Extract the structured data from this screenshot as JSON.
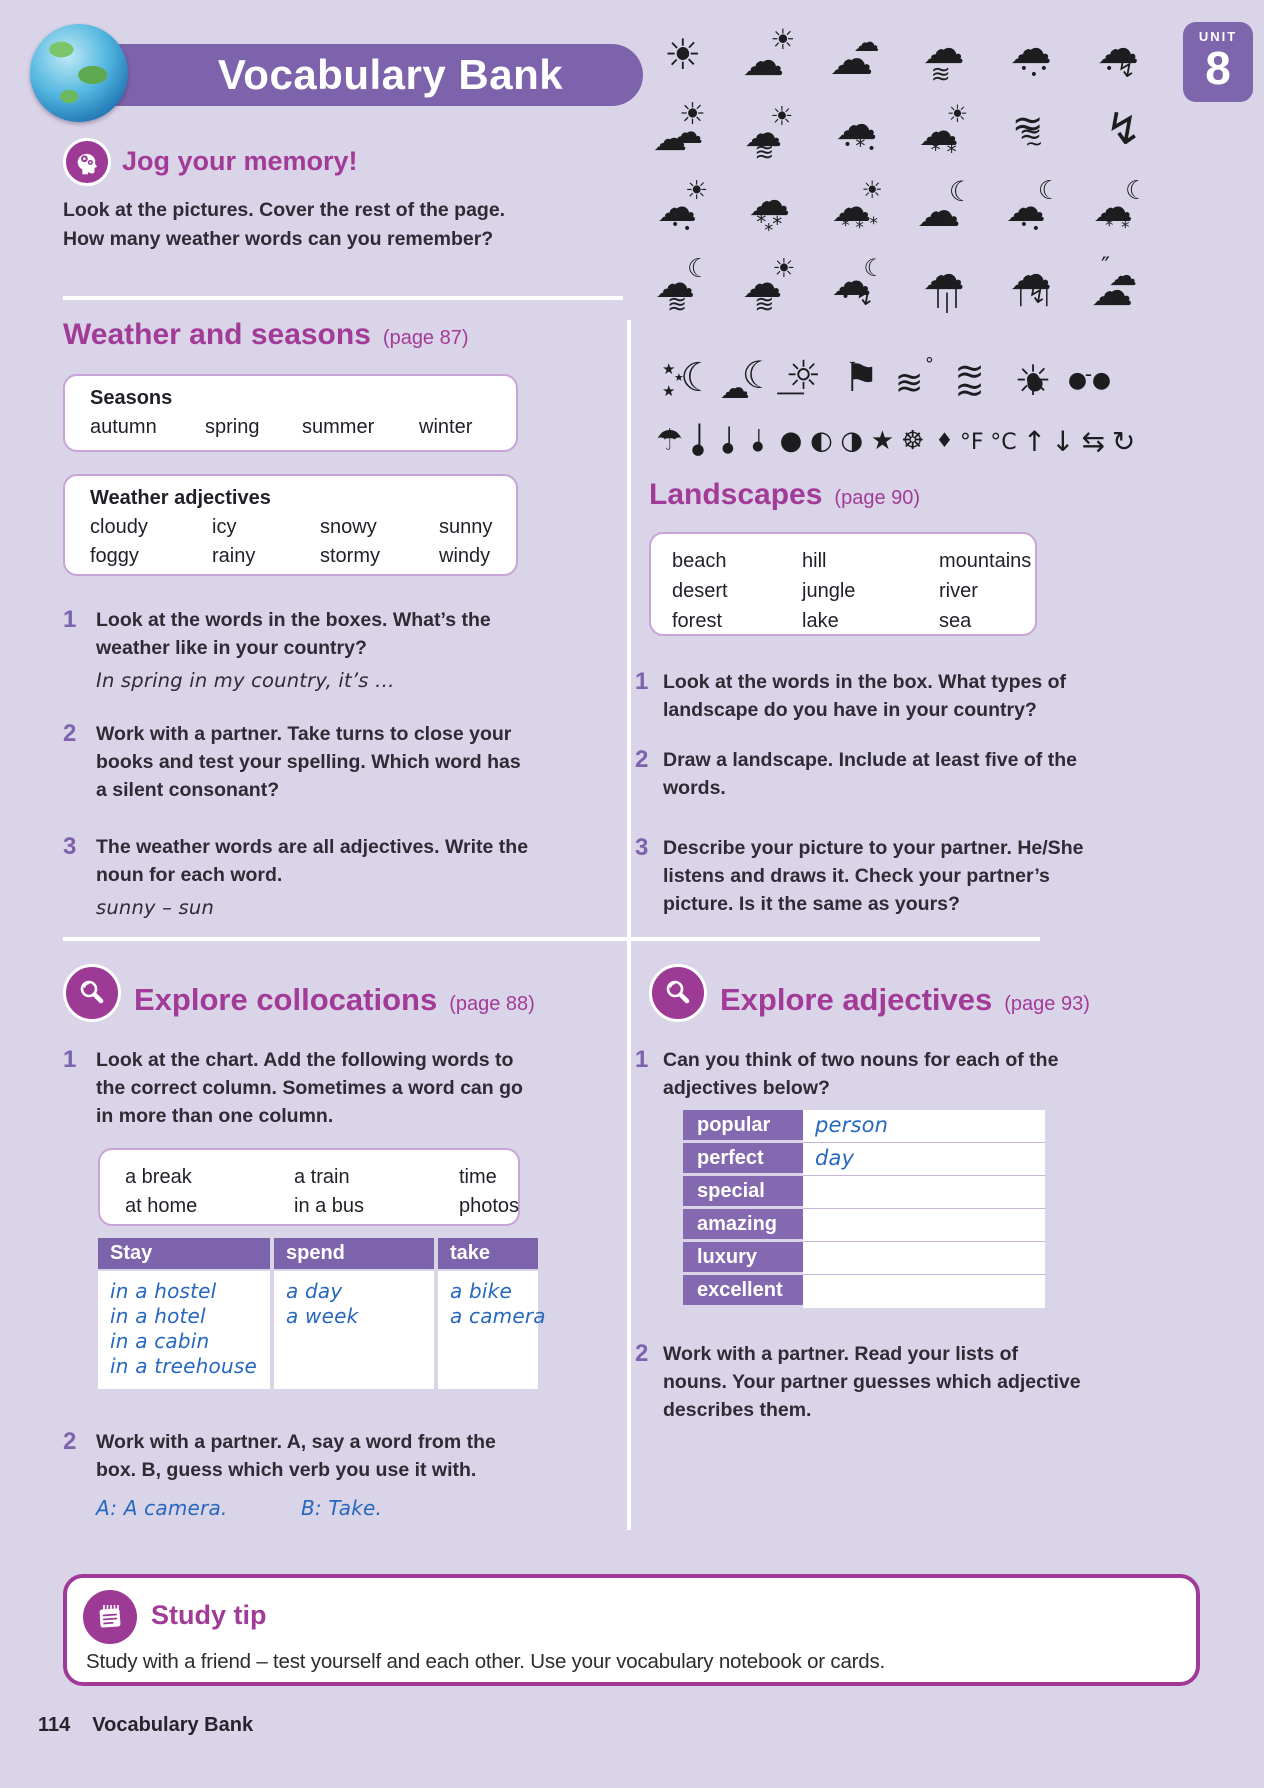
{
  "header": {
    "title": "Vocabulary Bank",
    "unit_label": "UNIT",
    "unit_number": "8"
  },
  "jog": {
    "title": "Jog your memory!",
    "intro_lines": [
      "Look at the pictures. Cover the rest of the page.",
      "How many weather words can you remember?"
    ]
  },
  "weather_seasons": {
    "title": "Weather and seasons",
    "page_ref": "(page 87)",
    "seasons_box": {
      "title": "Seasons",
      "words": [
        "autumn",
        "spring",
        "summer",
        "winter"
      ]
    },
    "adjectives_box": {
      "title": "Weather adjectives",
      "words": [
        "cloudy",
        "icy",
        "snowy",
        "sunny",
        "foggy",
        "rainy",
        "stormy",
        "windy"
      ]
    },
    "exercises": [
      {
        "num": "1",
        "lines": [
          "Look at the words in the boxes. What’s the",
          "weather like in your country?"
        ],
        "example": "In spring in my country, it’s …"
      },
      {
        "num": "2",
        "lines": [
          "Work with a partner. Take turns to close your",
          "books and test your spelling. Which word has",
          "a silent consonant?"
        ]
      },
      {
        "num": "3",
        "lines": [
          "The weather words are all adjectives. Write the",
          "noun for each word."
        ],
        "example": "sunny – sun"
      }
    ]
  },
  "landscapes": {
    "title": "Landscapes",
    "page_ref": "(page 90)",
    "box_words": [
      [
        "beach",
        "hill",
        "mountains"
      ],
      [
        "desert",
        "jungle",
        "river"
      ],
      [
        "forest",
        "lake",
        "sea"
      ]
    ],
    "exercises": [
      {
        "num": "1",
        "lines": [
          "Look at the words in the box. What types of",
          "landscape do you have in your country?"
        ]
      },
      {
        "num": "2",
        "lines": [
          "Draw a landscape. Include at least five of the",
          "words."
        ]
      },
      {
        "num": "3",
        "lines": [
          "Describe your picture to your partner. He/She",
          "listens and draws it. Check your partner’s",
          "picture. Is it the same as yours?"
        ]
      }
    ]
  },
  "collocations": {
    "title": "Explore collocations",
    "page_ref": "(page 88)",
    "exercise1": {
      "num": "1",
      "lines": [
        "Look at the chart. Add the following words to",
        "the correct column. Sometimes a word can go",
        "in more than one column."
      ]
    },
    "word_box": [
      [
        "a break",
        "a train",
        "time"
      ],
      [
        "at home",
        "in a bus",
        "photos"
      ]
    ],
    "table": {
      "headers": [
        "Stay",
        "spend",
        "take"
      ],
      "columns": [
        [
          "in a hostel",
          "in a hotel",
          "in a cabin",
          "in a treehouse"
        ],
        [
          "a day",
          "a week"
        ],
        [
          "a bike",
          "a camera"
        ]
      ]
    },
    "exercise2": {
      "num": "2",
      "lines": [
        "Work with a partner. A, say a word from the",
        "box. B, guess which verb you use it with."
      ],
      "example_a": "A: A camera.",
      "example_b": "B: Take."
    }
  },
  "adjectives": {
    "title": "Explore adjectives",
    "page_ref": "(page 93)",
    "exercise1": {
      "num": "1",
      "lines": [
        "Can you think of two nouns for each of the",
        "adjectives below?"
      ]
    },
    "rows": [
      {
        "label": "popular",
        "answer": "person"
      },
      {
        "label": "perfect",
        "answer": "day"
      },
      {
        "label": "special",
        "answer": ""
      },
      {
        "label": "amazing",
        "answer": ""
      },
      {
        "label": "luxury",
        "answer": ""
      },
      {
        "label": "excellent",
        "answer": ""
      }
    ],
    "exercise2": {
      "num": "2",
      "lines": [
        "Work with a partner. Read your lists of",
        "nouns. Your partner guesses which adjective",
        "describes them."
      ]
    }
  },
  "study_tip": {
    "title": "Study tip",
    "text": "Study with a friend – test yourself and each other. Use your vocabulary notebook or cards."
  },
  "footer": {
    "page_number": "114",
    "label": "Vocabulary Bank"
  },
  "colors": {
    "page_bg": "#DAD4E8",
    "banner_purple": "#7D63AB",
    "heading_magenta": "#A23B98",
    "icon_circle_purple": "#9C3A95",
    "box_border": "#C9A3D8",
    "text_dark": "#2E2B35",
    "handwriting_blue": "#2667BF",
    "study_tip_border": "#A13A97"
  },
  "icons": {
    "grid_rows": [
      [
        "sun",
        "sun-behind-cloud",
        "two-clouds",
        "windy-cloud",
        "rain-cloud",
        "storm-rain-cloud"
      ],
      [
        "partly-sunny-cloud",
        "windy-sun-cloud",
        "sleet-cloud",
        "snow-sun-cloud",
        "tornado",
        "lightning-bolt"
      ],
      [
        "sun-shower-cloud",
        "snow-cloud",
        "snow-shower-sun-cloud",
        "cloud-moon",
        "rain-moon-cloud",
        "snow-moon-cloud"
      ],
      [
        "windy-moon-cloud",
        "windy-sun-cloud-2",
        "storm-moon-cloud",
        "heavy-rain-cloud",
        "rain-lightning-cloud",
        "wind-over-clouds"
      ]
    ],
    "row5": [
      "moon-and-stars",
      "cloud-crescent-moon",
      "sunrise",
      "flag",
      "wind-leaves",
      "waves",
      "bright-sun",
      "sunglasses"
    ],
    "row6": [
      "umbrella",
      "thermometer-high",
      "thermometer-mid",
      "thermometer-low",
      "full-moon",
      "half-moon",
      "gibbous-moon",
      "star",
      "snowflake",
      "raindrop",
      "fahrenheit",
      "celsius",
      "arrow-up",
      "arrow-down",
      "swap-arrows",
      "rotate-arrow"
    ],
    "compositions": {
      "sun": [
        [
          "☀",
          9,
          4,
          42
        ]
      ],
      "sun-behind-cloud": [
        [
          "☀",
          28,
          -4,
          28
        ],
        [
          "☁",
          0,
          10,
          42
        ]
      ],
      "two-clouds": [
        [
          "☁",
          24,
          0,
          26
        ],
        [
          "☁",
          0,
          8,
          44
        ]
      ],
      "windy-cloud": [
        [
          "☁",
          6,
          -2,
          42
        ],
        [
          "≋",
          14,
          32,
          24
        ]
      ],
      "rain-cloud": [
        [
          "☁",
          6,
          -2,
          42
        ],
        [
          "•",
          16,
          32,
          14
        ],
        [
          "•",
          26,
          38,
          14
        ],
        [
          "•",
          36,
          32,
          14
        ]
      ],
      "storm-rain-cloud": [
        [
          "☁",
          6,
          -2,
          42
        ],
        [
          "•",
          14,
          32,
          14
        ],
        [
          "↯",
          26,
          30,
          22
        ]
      ],
      "partly-sunny-cloud": [
        [
          "☀",
          24,
          -6,
          30
        ],
        [
          "☁",
          16,
          10,
          32
        ],
        [
          "☁",
          -2,
          16,
          34
        ]
      ],
      "windy-sun-cloud": [
        [
          "☀",
          28,
          -2,
          26
        ],
        [
          "☁",
          2,
          8,
          38
        ],
        [
          "≋",
          12,
          34,
          24
        ]
      ],
      "sleet-cloud": [
        [
          "☁",
          6,
          -2,
          42
        ],
        [
          "•",
          14,
          32,
          14
        ],
        [
          "*",
          26,
          30,
          20
        ],
        [
          "•",
          38,
          36,
          14
        ]
      ],
      "snow-sun-cloud": [
        [
          "☀",
          30,
          -4,
          24
        ],
        [
          "☁",
          2,
          6,
          40
        ],
        [
          "*",
          14,
          34,
          20
        ],
        [
          "*",
          30,
          36,
          20
        ]
      ],
      "tornado": [
        [
          "≈",
          8,
          -2,
          38
        ],
        [
          "≈",
          15,
          14,
          28
        ],
        [
          "~",
          21,
          28,
          22
        ]
      ],
      "lightning-bolt": [
        [
          "↯",
          14,
          2,
          44
        ]
      ],
      "sun-shower-cloud": [
        [
          "☀",
          30,
          -4,
          26
        ],
        [
          "☁",
          2,
          6,
          40
        ],
        [
          "•",
          16,
          36,
          14
        ],
        [
          "•",
          28,
          40,
          14
        ]
      ],
      "snow-cloud": [
        [
          "☁",
          6,
          -2,
          42
        ],
        [
          "*",
          14,
          30,
          20
        ],
        [
          "*",
          30,
          32,
          20
        ],
        [
          "*",
          22,
          40,
          18
        ]
      ],
      "snow-shower-sun-cloud": [
        [
          "☀",
          32,
          -4,
          24
        ],
        [
          "☁",
          2,
          6,
          40
        ],
        [
          "*",
          12,
          36,
          17
        ],
        [
          "*",
          26,
          38,
          17
        ],
        [
          "*",
          40,
          34,
          17
        ]
      ],
      "cloud-moon": [
        [
          "☾",
          32,
          -4,
          28
        ],
        [
          "☁",
          0,
          8,
          44
        ]
      ],
      "rain-moon-cloud": [
        [
          "☾",
          34,
          -4,
          26
        ],
        [
          "☁",
          2,
          6,
          40
        ],
        [
          "•",
          16,
          36,
          14
        ],
        [
          "•",
          28,
          40,
          14
        ]
      ],
      "snow-moon-cloud": [
        [
          "☾",
          34,
          -4,
          26
        ],
        [
          "☁",
          2,
          6,
          40
        ],
        [
          "*",
          14,
          36,
          17
        ],
        [
          "*",
          30,
          38,
          17
        ]
      ],
      "windy-moon-cloud": [
        [
          "☾",
          32,
          -2,
          26
        ],
        [
          "☁",
          0,
          6,
          40
        ],
        [
          "≋",
          12,
          34,
          24
        ]
      ],
      "windy-sun-cloud-2": [
        [
          "☀",
          30,
          -2,
          26
        ],
        [
          "☁",
          0,
          6,
          40
        ],
        [
          "≋",
          12,
          34,
          24
        ]
      ],
      "storm-moon-cloud": [
        [
          "☾",
          34,
          -2,
          24
        ],
        [
          "☁",
          2,
          4,
          40
        ],
        [
          "•",
          12,
          32,
          14
        ],
        [
          "↯",
          26,
          30,
          22
        ]
      ],
      "heavy-rain-cloud": [
        [
          "☁",
          6,
          -4,
          42
        ],
        [
          "|",
          18,
          28,
          20
        ],
        [
          "|",
          27,
          33,
          20
        ],
        [
          "|",
          36,
          28,
          20
        ]
      ],
      "rain-lightning-cloud": [
        [
          "☁",
          6,
          -4,
          42
        ],
        [
          "|",
          14,
          30,
          18
        ],
        [
          "↯",
          24,
          28,
          22
        ],
        [
          "|",
          40,
          30,
          18
        ]
      ],
      "wind-over-clouds": [
        [
          "″",
          10,
          -4,
          24
        ],
        [
          "☁",
          18,
          4,
          28
        ],
        [
          "☁",
          0,
          12,
          42
        ]
      ],
      "moon-and-stars": [
        [
          "★",
          0,
          4,
          15
        ],
        [
          "★",
          12,
          14,
          11
        ],
        [
          "★",
          0,
          26,
          15
        ],
        [
          "☾",
          18,
          0,
          40
        ]
      ],
      "cloud-crescent-moon": [
        [
          "☾",
          22,
          -2,
          38
        ],
        [
          "☁",
          0,
          16,
          30
        ]
      ],
      "sunrise": [
        [
          "☼",
          8,
          -2,
          40
        ],
        [
          "──",
          0,
          26,
          22
        ]
      ],
      "flag": [
        [
          "⚑",
          8,
          0,
          40
        ]
      ],
      "wind-leaves": [
        [
          "°",
          32,
          -2,
          18
        ],
        [
          "≋",
          2,
          8,
          34
        ]
      ],
      "waves": [
        [
          "≈",
          4,
          -4,
          36
        ],
        [
          "≈",
          4,
          14,
          36
        ]
      ],
      "bright-sun": [
        [
          "☀",
          6,
          2,
          42
        ],
        [
          "●",
          18,
          14,
          20
        ]
      ],
      "sunglasses": [
        [
          "●",
          2,
          12,
          22
        ],
        [
          "-",
          19,
          6,
          20
        ],
        [
          "●",
          26,
          12,
          22
        ]
      ],
      "umbrella": [
        [
          "☂",
          0,
          4,
          30
        ]
      ],
      "thermometer-high": [
        [
          "|",
          9,
          0,
          24
        ],
        [
          "●",
          5,
          20,
          15
        ]
      ],
      "thermometer-mid": [
        [
          "|",
          9,
          3,
          20
        ],
        [
          "●",
          5,
          19,
          14
        ]
      ],
      "thermometer-low": [
        [
          "|",
          9,
          6,
          16
        ],
        [
          "●",
          5,
          18,
          13
        ]
      ],
      "full-moon": [
        [
          "●",
          2,
          6,
          26
        ]
      ],
      "half-moon": [
        [
          "◐",
          2,
          6,
          26
        ]
      ],
      "gibbous-moon": [
        [
          "◑",
          2,
          6,
          26
        ]
      ],
      "star": [
        [
          "★",
          2,
          6,
          26
        ]
      ],
      "snowflake": [
        [
          "☸",
          2,
          6,
          26
        ]
      ],
      "raindrop": [
        [
          "♦",
          6,
          8,
          20
        ]
      ],
      "fahrenheit": [
        [
          "°F",
          0,
          10,
          22
        ]
      ],
      "celsius": [
        [
          "°C",
          0,
          10,
          22
        ]
      ],
      "arrow-up": [
        [
          "↑",
          2,
          6,
          28
        ]
      ],
      "arrow-down": [
        [
          "↓",
          0,
          6,
          28
        ]
      ],
      "swap-arrows": [
        [
          "⇆",
          0,
          6,
          28
        ]
      ],
      "rotate-arrow": [
        [
          "↻",
          0,
          6,
          28
        ]
      ]
    }
  }
}
